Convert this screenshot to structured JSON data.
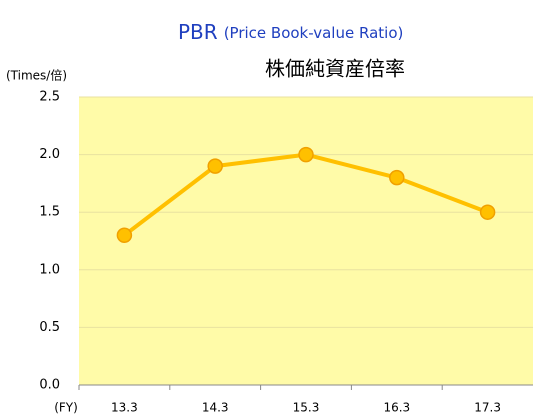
{
  "chart_data": {
    "type": "line",
    "title": "PBR",
    "subtitle": "(Price Book-value Ratio)",
    "title_ja": "株価純資産倍率",
    "y_label": "(Times/倍)",
    "x_label": "(FY)",
    "categories": [
      "13.3",
      "14.3",
      "15.3",
      "16.3",
      "17.3"
    ],
    "series": [
      {
        "name": "PBR",
        "color": "#ffc000",
        "values": [
          1.3,
          1.9,
          2.0,
          1.8,
          1.5
        ]
      }
    ],
    "ylim": [
      0,
      2.5
    ],
    "yticks": [
      {
        "value": 0,
        "label": "0.0"
      },
      0.5,
      {
        "value": 1,
        "label": "1.0"
      },
      1.5,
      {
        "value": 2,
        "label": "2.0"
      },
      2.5
    ],
    "grid": true
  }
}
